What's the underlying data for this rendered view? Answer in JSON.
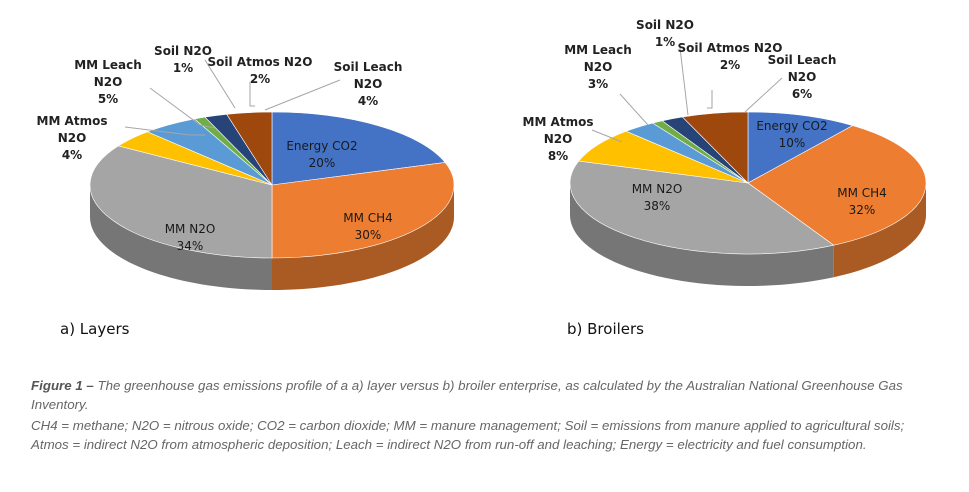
{
  "chart_data": [
    {
      "type": "pie",
      "title": "a) Layers",
      "categories": [
        "Energy CO2",
        "MM CH4",
        "MM N2O",
        "MM Atmos N2O",
        "MM Leach N2O",
        "Soil N2O",
        "Soil Atmos N2O",
        "Soil Leach N2O"
      ],
      "values": [
        20,
        30,
        34,
        4,
        5,
        1,
        2,
        4
      ],
      "labels": [
        "20%",
        "30%",
        "34%",
        "4%",
        "5%",
        "1%",
        "2%",
        "4%"
      ]
    },
    {
      "type": "pie",
      "title": "b) Broilers",
      "categories": [
        "Energy CO2",
        "MM CH4",
        "MM N2O",
        "MM Atmos N2O",
        "MM Leach N2O",
        "Soil N2O",
        "Soil Atmos N2O",
        "Soil Leach N2O"
      ],
      "values": [
        10,
        32,
        38,
        8,
        3,
        1,
        2,
        6
      ],
      "labels": [
        "10%",
        "32%",
        "38%",
        "8%",
        "3%",
        "1%",
        "2%",
        "6%"
      ]
    }
  ],
  "colors": [
    "#4472C4",
    "#ED7D31",
    "#A5A5A5",
    "#FFC000",
    "#5B9BD5",
    "#70AD47",
    "#264478",
    "#9E480E"
  ],
  "caption": {
    "figure_label": "Figure 1 –",
    "text": " The greenhouse gas emissions profile of a a) layer versus b) broiler enterprise, as calculated by the Australian National Greenhouse Gas Inventory.",
    "legend": "CH4 = methane; N2O = nitrous oxide; CO2 = carbon dioxide; MM = manure management; Soil = emissions from manure applied to agricultural soils; Atmos = indirect N2O from atmospheric deposition; Leach = indirect N2O from run-off and leaching; Energy = electricity and fuel consumption."
  }
}
